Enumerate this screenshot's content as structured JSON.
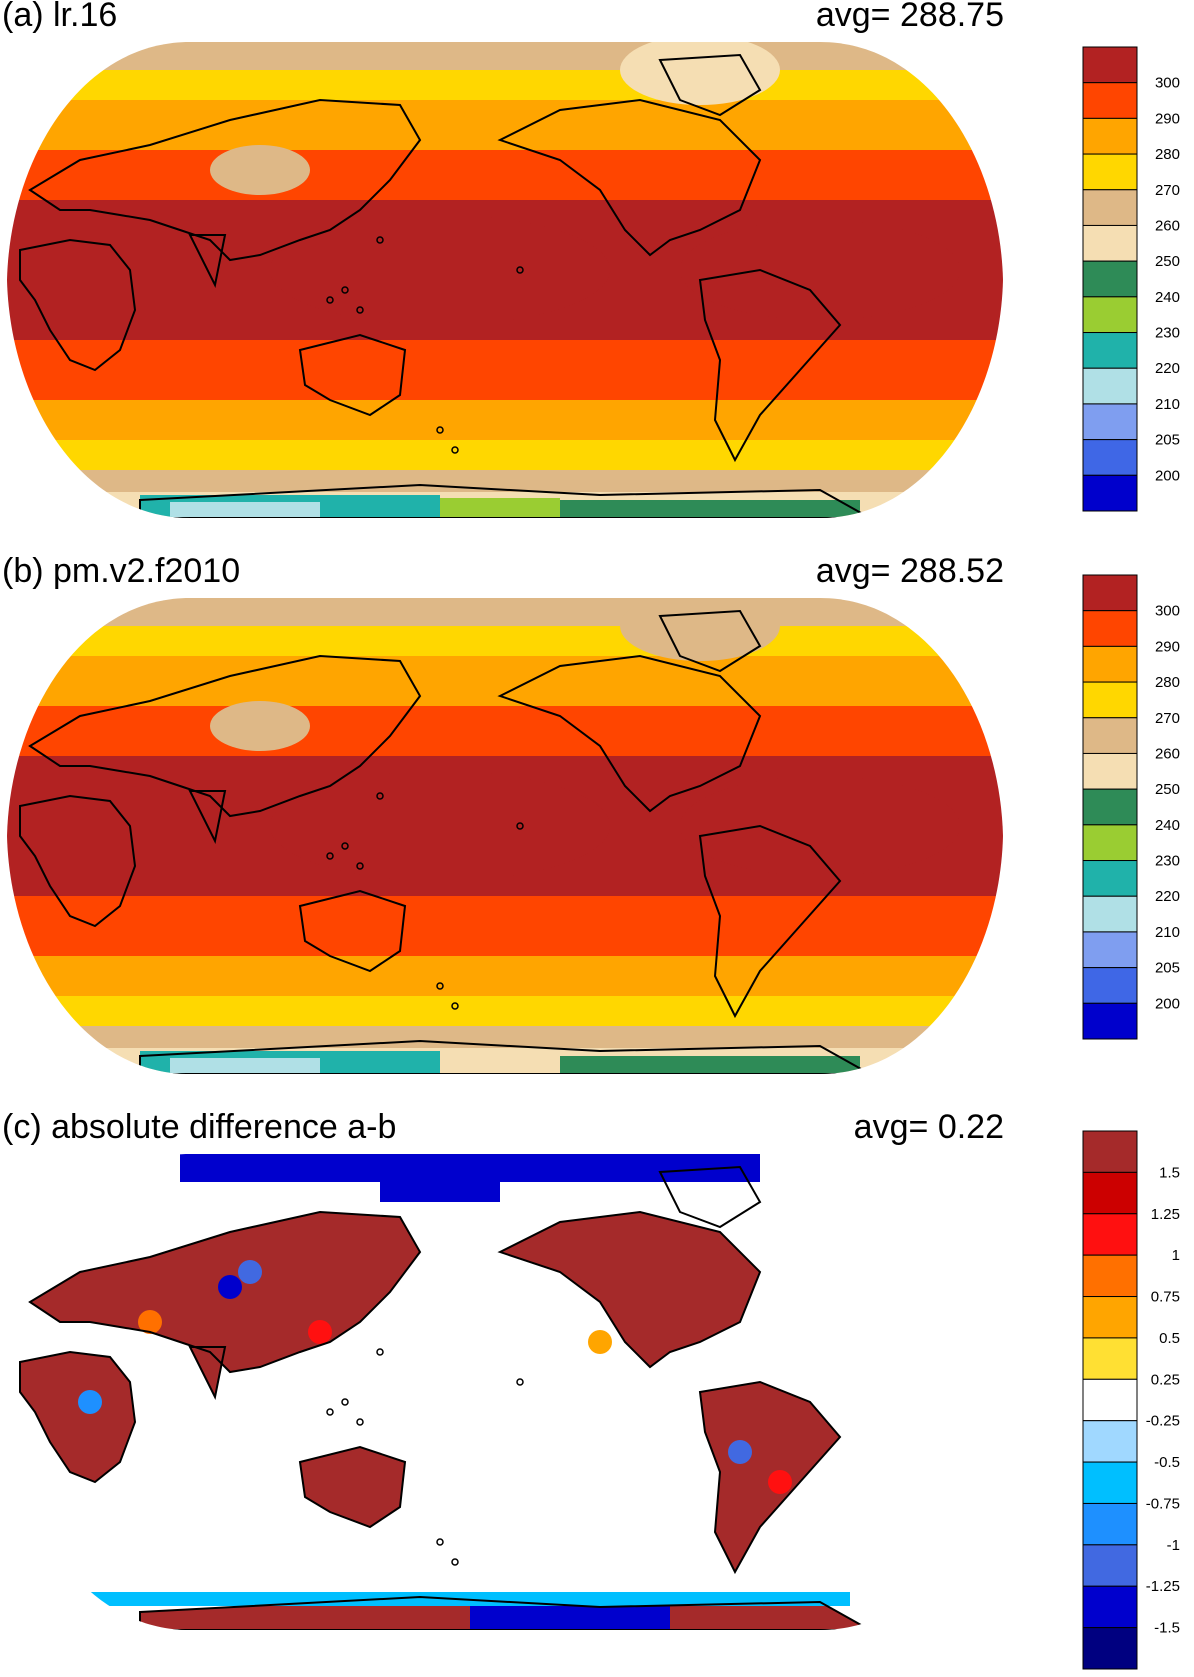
{
  "palette": {
    "temperature": [
      "#0000cc",
      "#3f67e6",
      "#7f9ef0",
      "#b0e0e6",
      "#20b2aa",
      "#9acd32",
      "#2e8b57",
      "#f5deb3",
      "#deb887",
      "#ffd700",
      "#ffa500",
      "#ff4500",
      "#b22222"
    ],
    "difference": [
      "#000080",
      "#0000cd",
      "#4169e1",
      "#1e90ff",
      "#00bfff",
      "#a0d8ff",
      "#ffffff",
      "#ffe033",
      "#ffa500",
      "#ff7000",
      "#ff1010",
      "#cc0000",
      "#a52a2a"
    ],
    "coast": "#000000"
  },
  "panels": [
    {
      "id": "a",
      "title": "(a) lr.16",
      "avg_label": "avg=",
      "avg_value": "288.75",
      "colorbar_labels": [
        "300",
        "290",
        "280",
        "270",
        "260",
        "250",
        "240",
        "230",
        "220",
        "210",
        "205",
        "200"
      ]
    },
    {
      "id": "b",
      "title": "(b) pm.v2.f2010",
      "avg_label": "avg=",
      "avg_value": "288.52",
      "colorbar_labels": [
        "300",
        "290",
        "280",
        "270",
        "260",
        "250",
        "240",
        "230",
        "220",
        "210",
        "205",
        "200"
      ]
    },
    {
      "id": "c",
      "title": "(c) absolute difference a-b",
      "avg_label": "avg=",
      "avg_value": "0.22",
      "colorbar_labels": [
        "1.5",
        "1.25",
        "1",
        "0.75",
        "0.5",
        "0.25",
        "-0.25",
        "-0.5",
        "-0.75",
        "-1",
        "-1.25",
        "-1.5"
      ]
    }
  ]
}
